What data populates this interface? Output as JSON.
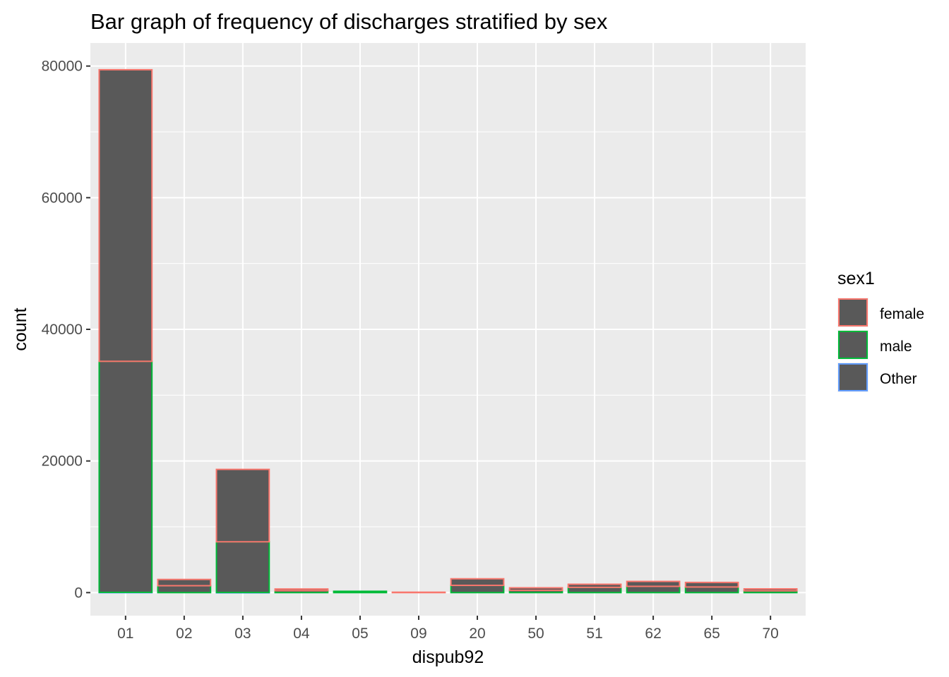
{
  "chart_data": {
    "type": "bar",
    "stacked": true,
    "title": "Bar graph of frequency of discharges stratified by sex",
    "xlabel": "dispub92",
    "ylabel": "count",
    "ylim": [
      -3500,
      83500
    ],
    "yticks": [
      0,
      20000,
      40000,
      60000,
      80000
    ],
    "yticklabels": [
      "0",
      "20000",
      "40000",
      "60000",
      "80000"
    ],
    "grid": true,
    "categories": [
      "01",
      "02",
      "03",
      "04",
      "05",
      "09",
      "20",
      "50",
      "51",
      "62",
      "65",
      "70"
    ],
    "series": [
      {
        "name": "female",
        "color": "#F8766D",
        "values": [
          44300,
          950,
          11000,
          250,
          0,
          60,
          1000,
          390,
          470,
          750,
          700,
          290
        ]
      },
      {
        "name": "male",
        "color": "#00BA38",
        "values": [
          35100,
          1050,
          7700,
          300,
          200,
          0,
          1100,
          340,
          800,
          950,
          850,
          280
        ]
      },
      {
        "name": "Other",
        "color": "#619CFF",
        "values": [
          40,
          0,
          20,
          0,
          0,
          0,
          0,
          0,
          0,
          0,
          0,
          0
        ]
      }
    ],
    "bar_fill": "#595959",
    "panel_background": "#EBEBEB",
    "legend": {
      "title": "sex1",
      "position": "right"
    }
  }
}
